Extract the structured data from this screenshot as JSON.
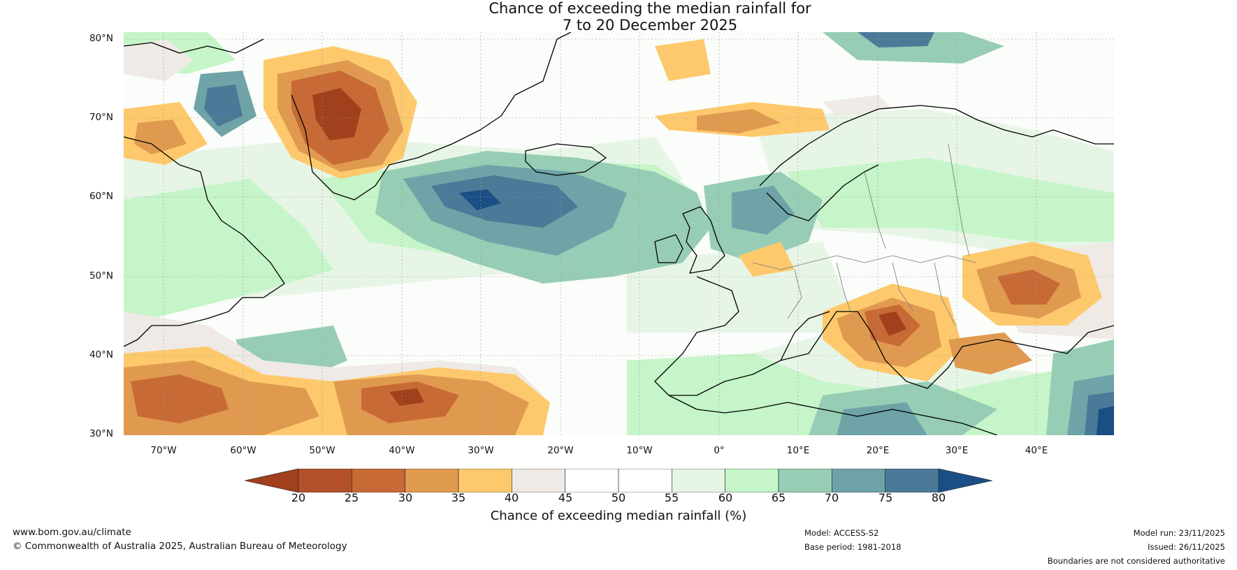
{
  "title": {
    "line1": "Chance of exceeding the median rainfall for",
    "line2": "7 to 20 December 2025"
  },
  "map": {
    "lat_labels": [
      "80°N",
      "70°N",
      "60°N",
      "50°N",
      "40°N",
      "30°N"
    ],
    "lon_labels": [
      "70°W",
      "60°W",
      "50°W",
      "40°W",
      "30°W",
      "20°W",
      "10°W",
      "0°",
      "10°E",
      "20°E",
      "30°E",
      "40°E"
    ],
    "lat_range": [
      30,
      81
    ],
    "lon_range": [
      -75,
      50
    ]
  },
  "legend": {
    "ticks": [
      "20",
      "25",
      "30",
      "35",
      "40",
      "45",
      "50",
      "55",
      "60",
      "65",
      "70",
      "75",
      "80"
    ],
    "colors": [
      "#a0401c",
      "#b3522a",
      "#c86a36",
      "#e09a50",
      "#fdc96c",
      "#efeae5",
      "#ffffff",
      "#ffffff",
      "#e7f5e7",
      "#c5f5c8",
      "#97cdb5",
      "#6ea3a8",
      "#4b7a98",
      "#1a4f85"
    ],
    "label": "Chance of exceeding median rainfall (%)"
  },
  "footer": {
    "website": "www.bom.gov.au/climate",
    "copyright": "© Commonwealth of Australia 2025, Australian Bureau of Meteorology",
    "model": "Model: ACCESS-S2",
    "base_period": "Base period: 1981-2018",
    "model_run": "Model run: 23/11/2025",
    "issued": "Issued: 26/11/2025",
    "disclaimer": "Boundaries are not considered authoritative"
  }
}
